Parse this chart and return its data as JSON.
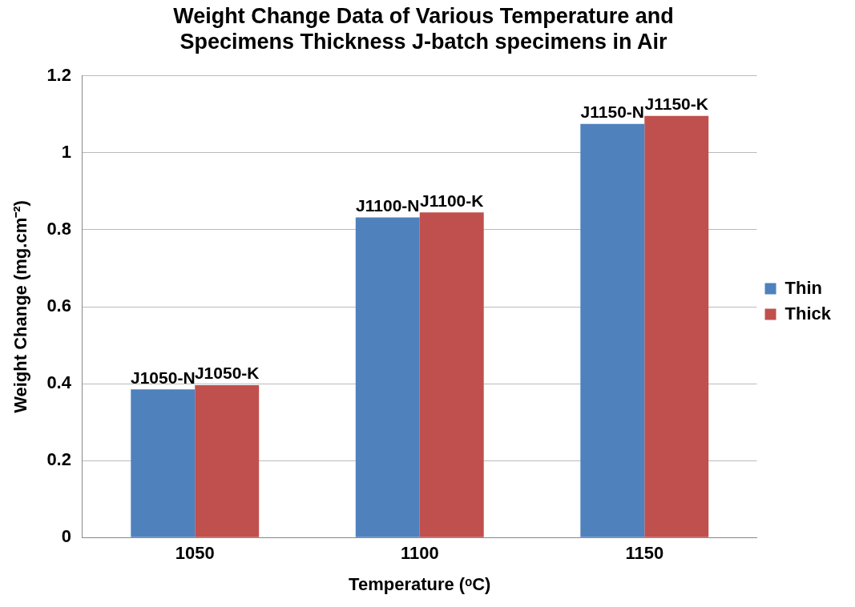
{
  "chart_data": {
    "type": "bar",
    "title": "Weight Change Data of Various Temperature and Specimens Thickness J-batch specimens in Air",
    "xlabel": "Temperature (ᵒC)",
    "ylabel": "Weight Change (mg.cm⁻²)",
    "categories": [
      "1050",
      "1100",
      "1150"
    ],
    "series": [
      {
        "name": "Thin",
        "color": "#4f81bd",
        "values": [
          0.385,
          0.832,
          1.075
        ]
      },
      {
        "name": "Thick",
        "color": "#c0504d",
        "values": [
          0.396,
          0.845,
          1.096
        ]
      }
    ],
    "ylim": [
      0,
      1.2
    ],
    "yticks": [
      0,
      0.2,
      0.4,
      0.6,
      0.8,
      1,
      1.2
    ],
    "grid": "y",
    "legend": "right",
    "annotations": [
      {
        "text": "J1050-N",
        "x": "1050",
        "y": 0.385
      },
      {
        "text": "J1050-K",
        "x": "1050",
        "y": 0.396
      },
      {
        "text": "J1100-N",
        "x": "1100",
        "y": 0.832
      },
      {
        "text": "J1100-K",
        "x": "1100",
        "y": 0.845
      },
      {
        "text": "J1150-N",
        "x": "1150",
        "y": 1.075
      },
      {
        "text": "J1150-K",
        "x": "1150",
        "y": 1.096
      }
    ]
  }
}
